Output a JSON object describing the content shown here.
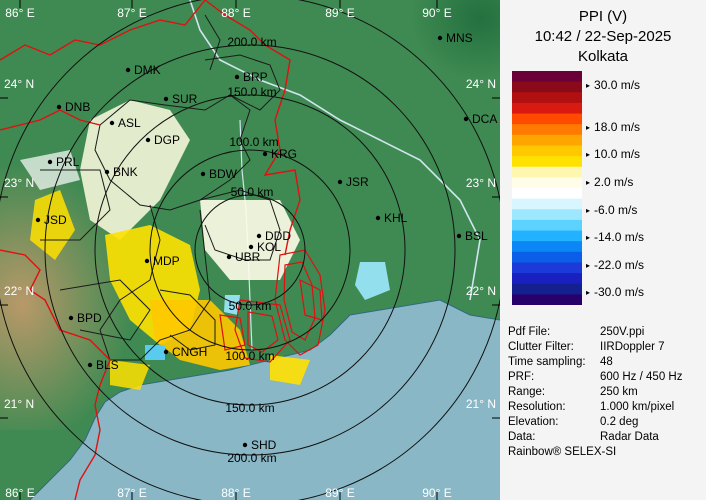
{
  "title": {
    "line1": "PPI (V)",
    "line2": "10:42 / 22-Sep-2025",
    "line3": "Kolkata"
  },
  "colorbar": {
    "colors": [
      "#6b0038",
      "#8a0a1a",
      "#b01010",
      "#d81a10",
      "#ff4a00",
      "#ff7a00",
      "#ffa500",
      "#ffc800",
      "#ffe100",
      "#fff7b0",
      "#fffce8",
      "#ffffff",
      "#d8f6ff",
      "#9de8ff",
      "#5cd2ff",
      "#22b2ff",
      "#0a86f5",
      "#0a5ee8",
      "#1c3ad8",
      "#1a20c0",
      "#142090",
      "#28006a"
    ],
    "labels": [
      "30.0 m/s",
      "18.0 m/s",
      "10.0 m/s",
      "2.0 m/s",
      "-6.0 m/s",
      "-14.0 m/s",
      "-22.0 m/s",
      "-30.0 m/s"
    ]
  },
  "info": [
    {
      "key": "Pdf File:",
      "value": "250V.ppi"
    },
    {
      "key": "Clutter Filter:",
      "value": "IIRDoppler 7"
    },
    {
      "key": "Time sampling:",
      "value": "48"
    },
    {
      "key": "PRF:",
      "value": "600 Hz / 450 Hz"
    },
    {
      "key": "Range:",
      "value": "250 km"
    },
    {
      "key": "Resolution:",
      "value": "1.000 km/pixel"
    },
    {
      "key": "Elevation:",
      "value": "0.2 deg"
    },
    {
      "key": "Data:",
      "value": "Radar Data"
    }
  ],
  "credit": "Rainbow® SELEX-SI",
  "map": {
    "lon_top": [
      "86° E",
      "87° E",
      "88° E",
      "89° E",
      "90° E"
    ],
    "lon_bottom": [
      "86° E",
      "87° E",
      "88° E",
      "89° E",
      "90° E"
    ],
    "lat_left": [
      "24° N",
      "23° N",
      "22° N",
      "21° N"
    ],
    "lat_right": [
      "24° N",
      "23° N",
      "22° N",
      "21° N"
    ],
    "range_labels": [
      "50.0 km",
      "100.0 km",
      "150.0 km",
      "200.0 km",
      "50.0 km",
      "100.0 km",
      "150.0 km",
      "200.0 km"
    ],
    "cities": [
      {
        "name": "MNS"
      },
      {
        "name": "DMK"
      },
      {
        "name": "BRP"
      },
      {
        "name": "DNB"
      },
      {
        "name": "SUR"
      },
      {
        "name": "ASL"
      },
      {
        "name": "DCA"
      },
      {
        "name": "DGP"
      },
      {
        "name": "KRG"
      },
      {
        "name": "PRL"
      },
      {
        "name": "BNK"
      },
      {
        "name": "BDW"
      },
      {
        "name": "JSR"
      },
      {
        "name": "JSD"
      },
      {
        "name": "KHL"
      },
      {
        "name": "DDD"
      },
      {
        "name": "KOL"
      },
      {
        "name": "UBR"
      },
      {
        "name": "MDP"
      },
      {
        "name": "BSL"
      },
      {
        "name": "BPD"
      },
      {
        "name": "CNGH"
      },
      {
        "name": "BLS"
      },
      {
        "name": "SHD"
      }
    ],
    "colors": {
      "land": "#3f8a52",
      "upland": "#b89a5c",
      "sea": "#8ab7c6",
      "border": "#e01010",
      "rings": "#111111"
    }
  }
}
